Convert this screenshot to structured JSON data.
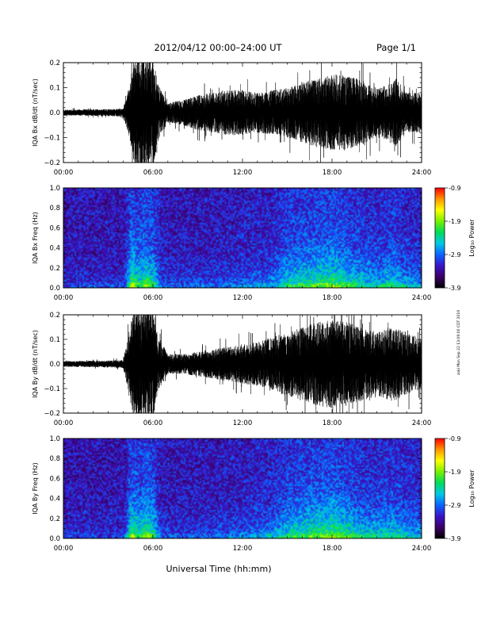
{
  "header": {
    "date_range": "2012/04/12   00:00–24:00 UT",
    "page": "Page 1/1"
  },
  "footer": {
    "xlabel": "Universal Time (hh:mm)"
  },
  "side_note": "zoki Mon Sep 22 13:09:00 CDT 2019",
  "colorbar": {
    "label": "Log₁₀ Power",
    "ticks": [
      "-0.9",
      "-1.9",
      "-2.9",
      "-3.9"
    ],
    "range": [
      -3.9,
      -0.9
    ],
    "colors": [
      "#000000",
      "#3c0066",
      "#3a14c8",
      "#0a64ff",
      "#00c8e6",
      "#00dc5a",
      "#78f000",
      "#ffff00",
      "#ff9600",
      "#ff0000"
    ]
  },
  "colors": {
    "trace": "#000000",
    "spectrogram_background": "#3a1c72"
  },
  "chart_data": [
    {
      "type": "line",
      "panel": "bx_waveform",
      "ylabel": "IQA Bx dB/dt (nT/sec)",
      "x_ticks": [
        "00:00",
        "06:00",
        "12:00",
        "18:00",
        "24:00"
      ],
      "y_ticks": [
        "0.2",
        "0.1",
        "0.0",
        "−0.1",
        "−0.2"
      ],
      "xlim_hours": [
        0,
        24
      ],
      "ylim": [
        -0.2,
        0.2
      ],
      "envelope_hours": [
        0,
        1,
        2,
        3,
        4,
        4.5,
        4.8,
        5.2,
        5.6,
        6.0,
        6.3,
        7,
        8,
        9,
        10,
        11,
        12,
        13,
        14,
        15,
        16,
        17,
        18,
        19,
        20,
        21,
        21.8,
        22.3,
        23,
        24
      ],
      "envelope_amplitude": [
        0.012,
        0.012,
        0.013,
        0.014,
        0.016,
        0.12,
        0.22,
        0.25,
        0.2,
        0.24,
        0.12,
        0.04,
        0.05,
        0.07,
        0.08,
        0.09,
        0.09,
        0.08,
        0.09,
        0.1,
        0.12,
        0.14,
        0.15,
        0.15,
        0.13,
        0.1,
        0.11,
        0.14,
        0.08,
        0.08
      ]
    },
    {
      "type": "heatmap",
      "panel": "bx_spectrogram",
      "ylabel": "IQA Bx Freq (Hz)",
      "x_ticks": [
        "00:00",
        "06:00",
        "12:00",
        "18:00",
        "24:00"
      ],
      "y_ticks": [
        "1.0",
        "0.8",
        "0.6",
        "0.4",
        "0.2",
        "0.0"
      ],
      "xlim_hours": [
        0,
        24
      ],
      "ylim_hz": [
        0,
        1.0
      ],
      "clim_log10_power": [
        -3.9,
        -0.9
      ],
      "activity_hours": [
        0,
        2,
        4,
        4.5,
        5,
        5.5,
        6,
        6.5,
        7,
        8,
        10,
        12,
        14,
        15,
        16,
        17,
        18,
        19,
        20,
        21,
        22,
        23,
        24
      ],
      "activity_level": [
        0.15,
        0.15,
        0.15,
        0.75,
        0.6,
        0.7,
        0.6,
        0.2,
        0.2,
        0.2,
        0.22,
        0.28,
        0.35,
        0.55,
        0.6,
        0.65,
        0.7,
        0.6,
        0.5,
        0.45,
        0.55,
        0.4,
        0.35
      ]
    },
    {
      "type": "line",
      "panel": "by_waveform",
      "ylabel": "IQA By dB/dt (nT/sec)",
      "x_ticks": [
        "00:00",
        "06:00",
        "12:00",
        "18:00",
        "24:00"
      ],
      "y_ticks": [
        "0.2",
        "0.1",
        "0.0",
        "−0.1",
        "−0.2"
      ],
      "xlim_hours": [
        0,
        24
      ],
      "ylim": [
        -0.2,
        0.2
      ],
      "envelope_hours": [
        0,
        1,
        2,
        3,
        4,
        4.5,
        4.8,
        5.2,
        5.6,
        6.0,
        6.3,
        7,
        8,
        9,
        10,
        11,
        12,
        13,
        14,
        15,
        16,
        17,
        18,
        19,
        20,
        21,
        22,
        23,
        24
      ],
      "envelope_amplitude": [
        0.012,
        0.012,
        0.013,
        0.014,
        0.016,
        0.16,
        0.24,
        0.25,
        0.22,
        0.24,
        0.12,
        0.04,
        0.04,
        0.05,
        0.06,
        0.07,
        0.08,
        0.09,
        0.11,
        0.13,
        0.15,
        0.17,
        0.18,
        0.17,
        0.15,
        0.13,
        0.15,
        0.13,
        0.1
      ]
    },
    {
      "type": "heatmap",
      "panel": "by_spectrogram",
      "ylabel": "IQA By Freq (Hz)",
      "x_ticks": [
        "00:00",
        "06:00",
        "12:00",
        "18:00",
        "24:00"
      ],
      "y_ticks": [
        "1.0",
        "0.8",
        "0.6",
        "0.4",
        "0.2",
        "0.0"
      ],
      "xlim_hours": [
        0,
        24
      ],
      "ylim_hz": [
        0,
        1.0
      ],
      "clim_log10_power": [
        -3.9,
        -0.9
      ],
      "activity_hours": [
        0,
        2,
        4,
        4.5,
        5,
        5.5,
        6,
        6.5,
        7,
        8,
        10,
        12,
        14,
        15,
        16,
        17,
        18,
        19,
        20,
        21,
        22,
        23,
        24
      ],
      "activity_level": [
        0.15,
        0.15,
        0.15,
        0.75,
        0.6,
        0.7,
        0.6,
        0.2,
        0.2,
        0.2,
        0.22,
        0.28,
        0.4,
        0.55,
        0.6,
        0.68,
        0.72,
        0.62,
        0.52,
        0.48,
        0.55,
        0.42,
        0.35
      ]
    }
  ]
}
